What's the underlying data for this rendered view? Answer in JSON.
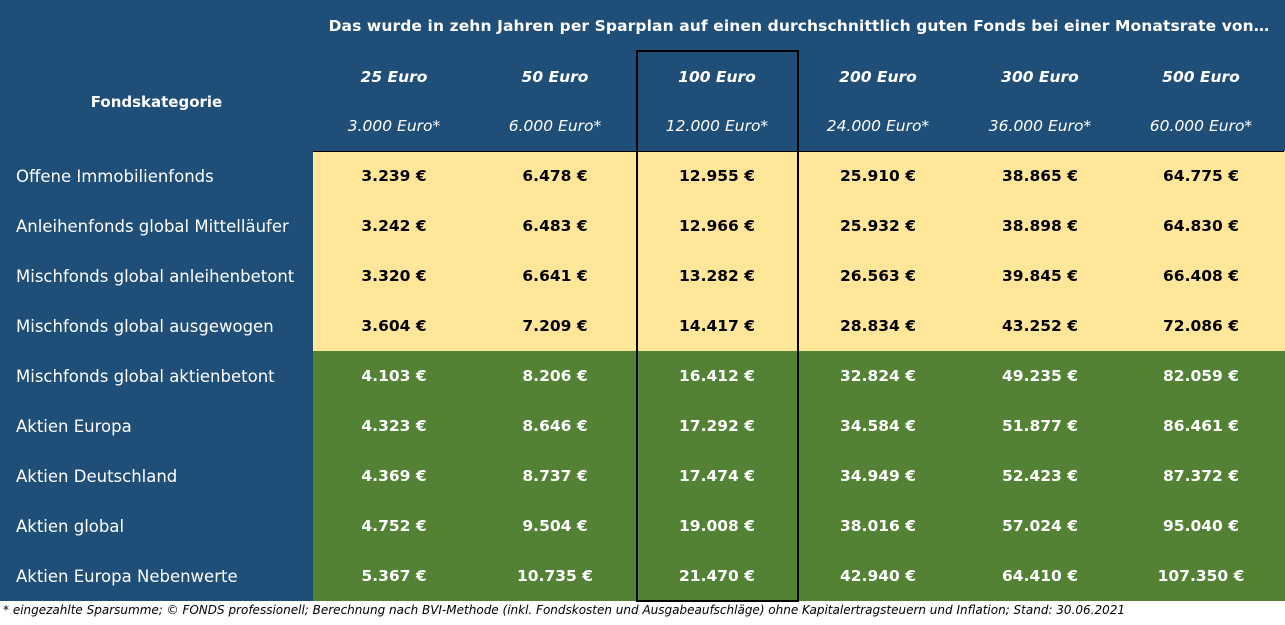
{
  "title": "Das wurde in zehn Jahren per Sparplan auf einen durchschnittlich guten Fonds bei einer Monatsrate von…",
  "category_header": "Fondskategorie",
  "columns": [
    {
      "rate": "25 Euro",
      "sum": "3.000 Euro*"
    },
    {
      "rate": "50 Euro",
      "sum": "6.000 Euro*"
    },
    {
      "rate": "100 Euro",
      "sum": "12.000 Euro*"
    },
    {
      "rate": "200 Euro",
      "sum": "24.000 Euro*"
    },
    {
      "rate": "300 Euro",
      "sum": "36.000 Euro*"
    },
    {
      "rate": "500 Euro",
      "sum": "60.000 Euro*"
    }
  ],
  "rows": [
    {
      "category": "Offene Immobilienfonds",
      "group": "yellow",
      "values": [
        "3.239 €",
        "6.478 €",
        "12.955 €",
        "25.910 €",
        "38.865 €",
        "64.775 €"
      ]
    },
    {
      "category": "Anleihenfonds global Mittelläufer",
      "group": "yellow",
      "values": [
        "3.242 €",
        "6.483 €",
        "12.966 €",
        "25.932 €",
        "38.898 €",
        "64.830 €"
      ]
    },
    {
      "category": "Mischfonds global anleihenbetont",
      "group": "yellow",
      "values": [
        "3.320 €",
        "6.641 €",
        "13.282 €",
        "26.563 €",
        "39.845 €",
        "66.408 €"
      ]
    },
    {
      "category": "Mischfonds global ausgewogen",
      "group": "yellow",
      "values": [
        "3.604 €",
        "7.209 €",
        "14.417 €",
        "28.834 €",
        "43.252 €",
        "72.086 €"
      ]
    },
    {
      "category": "Mischfonds global aktienbetont",
      "group": "green",
      "values": [
        "4.103 €",
        "8.206 €",
        "16.412 €",
        "32.824 €",
        "49.235 €",
        "82.059 €"
      ]
    },
    {
      "category": "Aktien Europa",
      "group": "green",
      "values": [
        "4.323 €",
        "8.646 €",
        "17.292 €",
        "34.584 €",
        "51.877 €",
        "86.461 €"
      ]
    },
    {
      "category": "Aktien Deutschland",
      "group": "green",
      "values": [
        "4.369 €",
        "8.737 €",
        "17.474 €",
        "34.949 €",
        "52.423 €",
        "87.372 €"
      ]
    },
    {
      "category": "Aktien global",
      "group": "green",
      "values": [
        "4.752 €",
        "9.504 €",
        "19.008 €",
        "38.016 €",
        "57.024 €",
        "95.040 €"
      ]
    },
    {
      "category": "Aktien Europa Nebenwerte",
      "group": "green",
      "values": [
        "5.367 €",
        "10.735 €",
        "21.470 €",
        "42.940 €",
        "64.410 €",
        "107.350 €"
      ]
    }
  ],
  "footnote": "* eingezahlte Sparsumme; © FONDS professionell; Berechnung nach BVI-Methode (inkl. Fondskosten und Ausgabeaufschläge) ohne Kapitalertragsteuern und Inflation; Stand: 30.06.2021",
  "colors": {
    "header_blue": "#1f4e79",
    "yellow_group": "#ffe699",
    "green_group": "#548235"
  }
}
